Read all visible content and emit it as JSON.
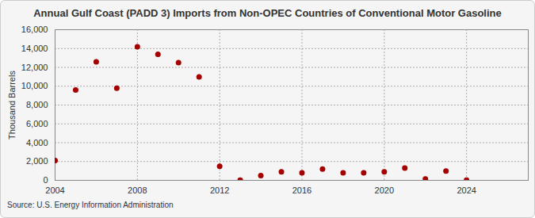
{
  "chart_data": {
    "type": "scatter",
    "title": "Annual Gulf Coast (PADD 3) Imports from Non-OPEC Countries of Conventional Motor Gasoline",
    "y_label": "Thousand Barrels",
    "source": "Source: U.S. Energy Information Administration",
    "x": [
      2004,
      2005,
      2006,
      2007,
      2008,
      2009,
      2010,
      2011,
      2012,
      2013,
      2014,
      2015,
      2016,
      2017,
      2018,
      2019,
      2020,
      2021,
      2022,
      2023,
      2024
    ],
    "values": [
      2100,
      9600,
      12600,
      9800,
      14200,
      13400,
      12500,
      11000,
      1500,
      20,
      500,
      900,
      800,
      1200,
      800,
      800,
      900,
      1300,
      150,
      1000,
      30
    ],
    "color": "#a50000",
    "marker": "circle",
    "xlim": [
      2004,
      2027
    ],
    "xticks": [
      2004,
      2008,
      2012,
      2016,
      2020,
      2024
    ],
    "ylim": [
      0,
      16000
    ],
    "yticks": [
      0,
      {
        "value": 2000,
        "label": "2,000"
      },
      {
        "value": 4000,
        "label": "4,000"
      },
      {
        "value": 6000,
        "label": "6,000"
      },
      {
        "value": 8000,
        "label": "8,000"
      },
      {
        "value": 10000,
        "label": "10,000"
      },
      {
        "value": 12000,
        "label": "12,000"
      },
      {
        "value": 14000,
        "label": "14,000"
      },
      {
        "value": 16000,
        "label": "16,000"
      }
    ],
    "grid": true
  }
}
